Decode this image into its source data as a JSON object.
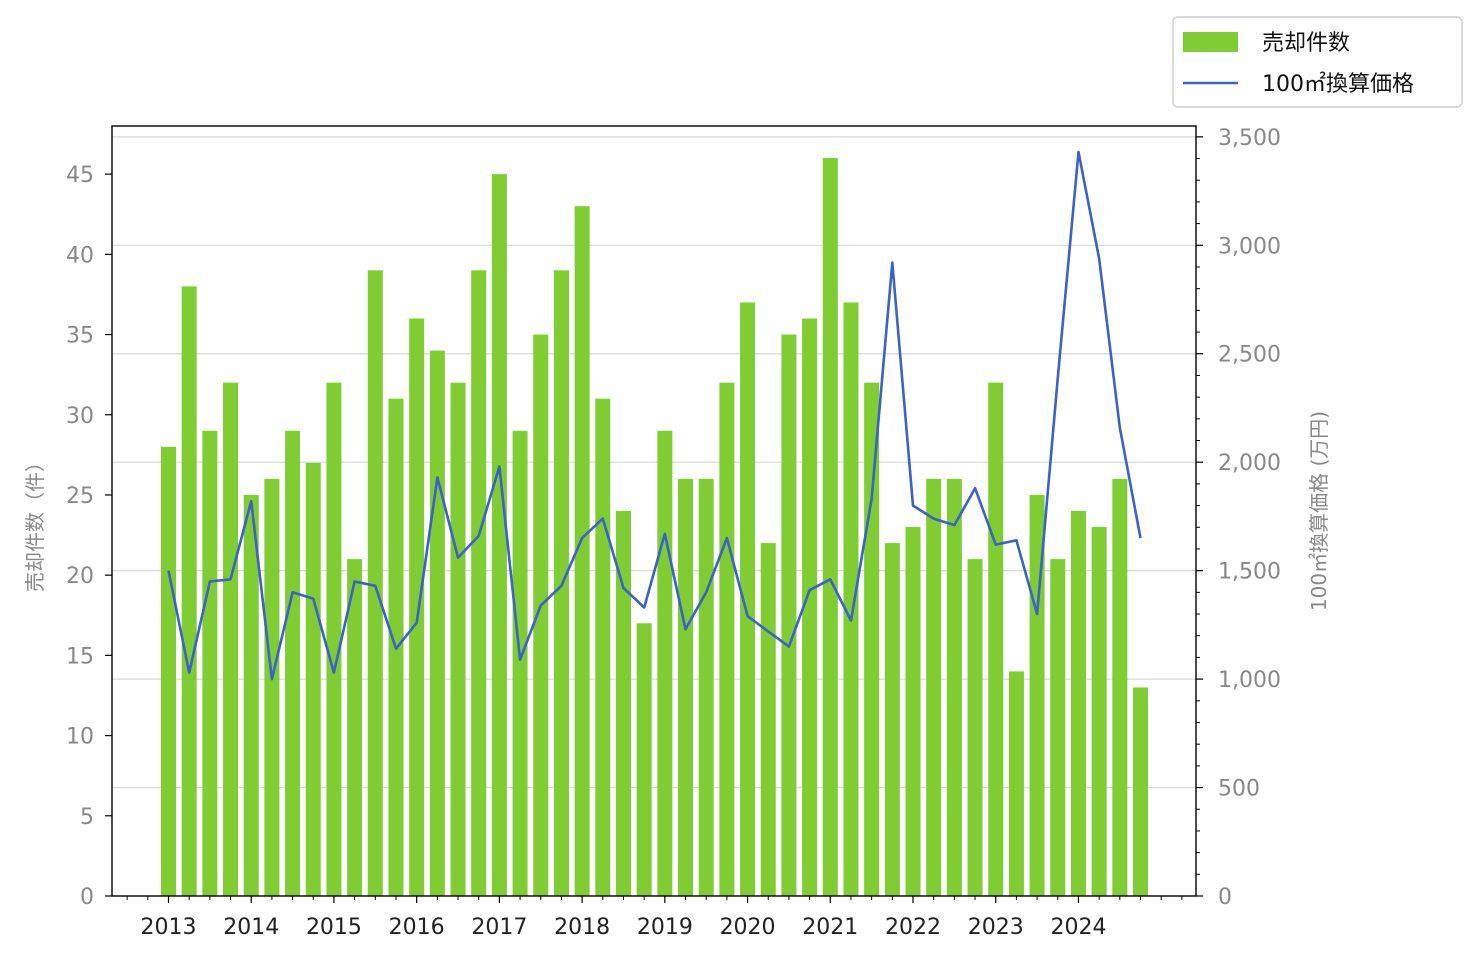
{
  "chart_data": {
    "type": "bar+line",
    "title": "",
    "xlabel": "",
    "ylabel_left": "売却件数（件）",
    "ylabel_right": "100㎡換算価格 (万円)",
    "x_tick_labels": [
      "2013",
      "2014",
      "2015",
      "2016",
      "2017",
      "2018",
      "2019",
      "2020",
      "2021",
      "2022",
      "2023",
      "2024"
    ],
    "left_axis": {
      "ylim": [
        0,
        48
      ],
      "ticks": [
        0,
        5,
        10,
        15,
        20,
        25,
        30,
        35,
        40,
        45
      ]
    },
    "right_axis": {
      "ylim": [
        0,
        3550
      ],
      "ticks": [
        0,
        500,
        1000,
        1500,
        2000,
        2500,
        3000,
        3500
      ],
      "tick_labels": [
        "0",
        "500",
        "1,000",
        "1,500",
        "2,000",
        "2,500",
        "3,000",
        "3,500"
      ]
    },
    "grid": "horizontal (right axis)",
    "legend": {
      "placement": "top-right outside",
      "entries": [
        "売却件数",
        "100㎡換算価格"
      ]
    },
    "series": [
      {
        "name": "売却件数",
        "kind": "bar",
        "axis": "left",
        "color": "#7fcc33",
        "values": [
          28,
          38,
          29,
          32,
          25,
          26,
          29,
          27,
          32,
          21,
          39,
          31,
          36,
          34,
          32,
          39,
          45,
          29,
          35,
          39,
          43,
          31,
          24,
          17,
          29,
          26,
          26,
          32,
          37,
          22,
          35,
          36,
          46,
          37,
          32,
          22,
          23,
          26,
          26,
          21,
          32,
          14,
          25,
          21,
          24,
          23,
          26,
          13
        ]
      },
      {
        "name": "100㎡換算価格",
        "kind": "line",
        "axis": "right",
        "color": "#3a62c8",
        "values": [
          1500,
          1030,
          1450,
          1460,
          1820,
          1000,
          1400,
          1370,
          1030,
          1450,
          1430,
          1140,
          1260,
          1930,
          1560,
          1660,
          1980,
          1090,
          1340,
          1430,
          1650,
          1740,
          1420,
          1330,
          1670,
          1230,
          1400,
          1650,
          1290,
          1220,
          1150,
          1410,
          1460,
          1270,
          1830,
          2920,
          1800,
          1740,
          1710,
          1880,
          1620,
          1640,
          1300,
          2390,
          3430,
          2940,
          2160,
          1650
        ]
      }
    ]
  }
}
